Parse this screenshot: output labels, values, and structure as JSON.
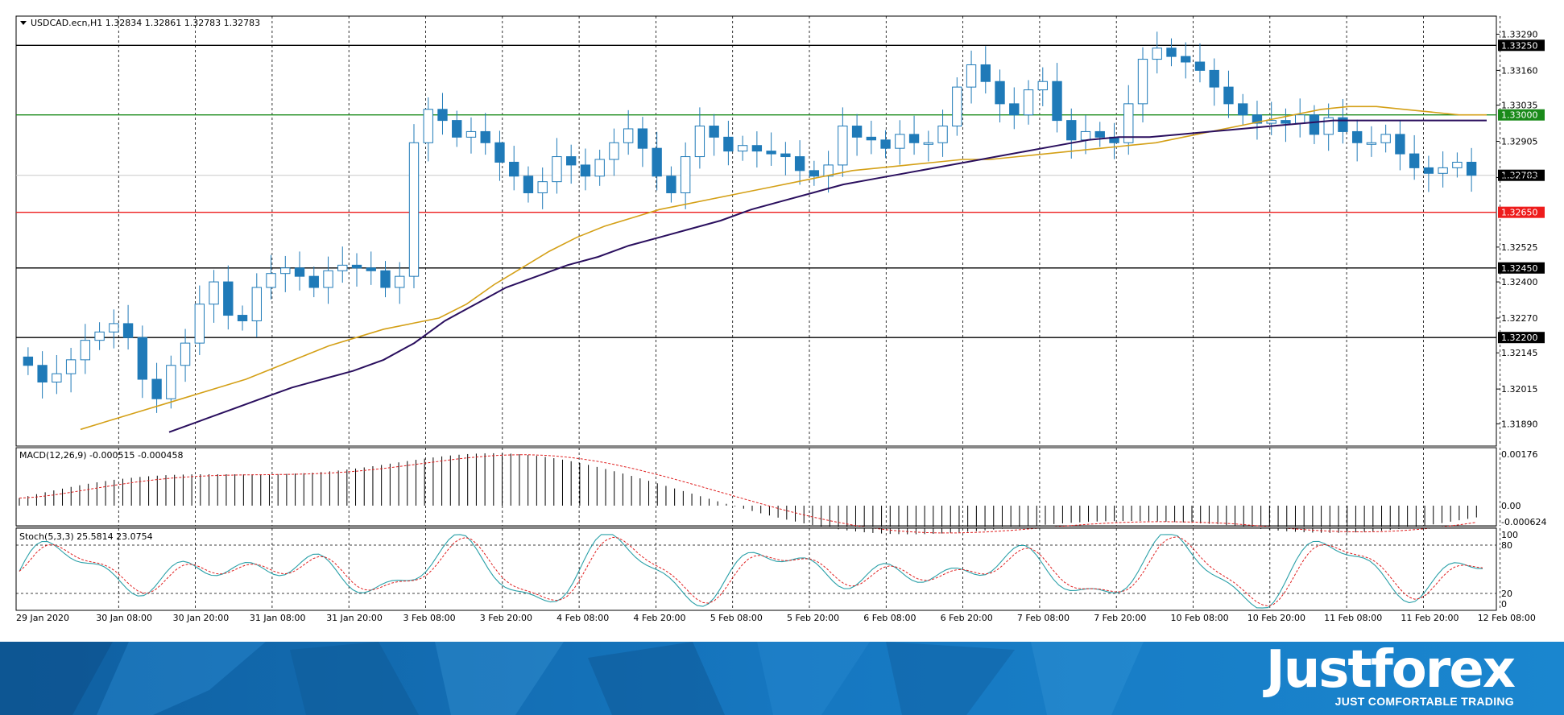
{
  "main_panel": {
    "title": "USDCAD.ecn,H1  1.32834 1.32861 1.32783 1.32783",
    "price_scale": [
      "1.33290",
      "1.33160",
      "1.33035",
      "1.32905",
      "1.32775",
      "1.32525",
      "1.32400",
      "1.32270",
      "1.32145",
      "1.32015",
      "1.31890"
    ],
    "levels": [
      {
        "label": "1.33250",
        "color": "#000000"
      },
      {
        "label": "1.33000",
        "color": "#1a8a1a"
      },
      {
        "label": "1.32783",
        "color": "#000000"
      },
      {
        "label": "1.32650",
        "color": "#ee1c1c"
      },
      {
        "label": "1.32450",
        "color": "#000000"
      },
      {
        "label": "1.32200",
        "color": "#000000"
      }
    ]
  },
  "macd_panel": {
    "title": "MACD(12,26,9) -0.000515 -0.000458",
    "scale": [
      "0.00176",
      "0.00",
      "-0.000624"
    ]
  },
  "stoch_panel": {
    "title": "Stoch(5,3,3) 25.5814 23.0754",
    "scale": [
      "100",
      "80",
      "20",
      "0"
    ]
  },
  "time_axis": [
    "29 Jan 2020",
    "30 Jan 08:00",
    "30 Jan 20:00",
    "31 Jan 08:00",
    "31 Jan 20:00",
    "3 Feb 08:00",
    "3 Feb 20:00",
    "4 Feb 08:00",
    "4 Feb 20:00",
    "5 Feb 08:00",
    "5 Feb 20:00",
    "6 Feb 08:00",
    "6 Feb 20:00",
    "7 Feb 08:00",
    "7 Feb 20:00",
    "10 Feb 08:00",
    "10 Feb 20:00",
    "11 Feb 08:00",
    "11 Feb 20:00",
    "12 Feb 08:00"
  ],
  "colors": {
    "bull": "#1f7ab8",
    "bear": "#1f7ab8",
    "ma_fast": "#d4a017",
    "ma_slow": "#2a0f5e",
    "signal": "#e02020",
    "stoch_main": "#2aa0a8"
  },
  "brand": {
    "name": "Justforex",
    "slogan": "JUST COMFORTABLE TRADING"
  },
  "chart_data": {
    "type": "candlestick",
    "symbol": "USDCAD.ecn",
    "timeframe": "H1",
    "ohlc_last": {
      "open": 1.32834,
      "high": 1.32861,
      "low": 1.32783,
      "close": 1.32783
    },
    "close_series": [
      1.321,
      1.3204,
      1.3207,
      1.3212,
      1.3219,
      1.3222,
      1.3225,
      1.322,
      1.3205,
      1.3198,
      1.321,
      1.3218,
      1.3232,
      1.324,
      1.3228,
      1.3226,
      1.3238,
      1.3243,
      1.3245,
      1.3242,
      1.3238,
      1.3244,
      1.3246,
      1.3245,
      1.3244,
      1.3238,
      1.3242,
      1.329,
      1.3302,
      1.3298,
      1.3292,
      1.3294,
      1.329,
      1.3283,
      1.3278,
      1.3272,
      1.3276,
      1.3285,
      1.3282,
      1.3278,
      1.3284,
      1.329,
      1.3295,
      1.3288,
      1.3278,
      1.3272,
      1.3285,
      1.3296,
      1.3292,
      1.3287,
      1.3289,
      1.3287,
      1.3286,
      1.3285,
      1.328,
      1.3278,
      1.3282,
      1.3296,
      1.3292,
      1.3291,
      1.3288,
      1.3293,
      1.329,
      1.329,
      1.3296,
      1.331,
      1.3318,
      1.3312,
      1.3304,
      1.33,
      1.3309,
      1.3312,
      1.3298,
      1.3291,
      1.3294,
      1.3292,
      1.329,
      1.3304,
      1.332,
      1.3324,
      1.3321,
      1.3319,
      1.3316,
      1.331,
      1.3304,
      1.33,
      1.3297,
      1.3298,
      1.3297,
      1.33,
      1.3293,
      1.3299,
      1.3294,
      1.329,
      1.329,
      1.3293,
      1.3286,
      1.3281,
      1.3279,
      1.3281,
      1.3283,
      1.32783
    ],
    "ma_fast": [
      1.3187,
      1.319,
      1.3193,
      1.3196,
      1.3199,
      1.3202,
      1.3205,
      1.3209,
      1.3213,
      1.3217,
      1.322,
      1.3223,
      1.3225,
      1.3227,
      1.3232,
      1.3239,
      1.3245,
      1.3251,
      1.3256,
      1.326,
      1.3263,
      1.3266,
      1.3268,
      1.327,
      1.3272,
      1.3274,
      1.3276,
      1.3278,
      1.328,
      1.3281,
      1.3282,
      1.3283,
      1.3284,
      1.3284,
      1.3285,
      1.3286,
      1.3287,
      1.3288,
      1.3289,
      1.329,
      1.3292,
      1.3294,
      1.3296,
      1.3298,
      1.33,
      1.3302,
      1.3303,
      1.3303,
      1.3302,
      1.3301,
      1.33,
      1.33
    ],
    "ma_slow": [
      1.3186,
      1.319,
      1.3194,
      1.3198,
      1.3202,
      1.3205,
      1.3208,
      1.3212,
      1.3218,
      1.3226,
      1.3232,
      1.3238,
      1.3242,
      1.3246,
      1.3249,
      1.3253,
      1.3256,
      1.3259,
      1.3262,
      1.3266,
      1.3269,
      1.3272,
      1.3275,
      1.3277,
      1.3279,
      1.3281,
      1.3283,
      1.3285,
      1.3287,
      1.3289,
      1.3291,
      1.3292,
      1.3292,
      1.3293,
      1.3294,
      1.3295,
      1.3296,
      1.3297,
      1.3298,
      1.3298,
      1.3298,
      1.3298,
      1.3298,
      1.3298
    ]
  }
}
